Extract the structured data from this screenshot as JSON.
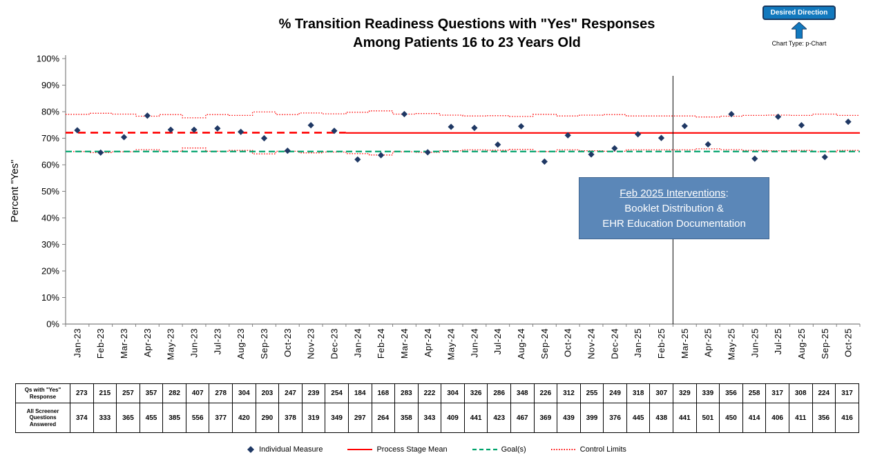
{
  "header": {
    "title_line1": "% Transition Readiness Questions with \"Yes\" Responses",
    "title_line2": "Among Patients 16 to 23 Years Old",
    "desired_direction_label": "Desired Direction",
    "desired_direction_color": "#1279BE",
    "chart_type_label": "Chart Type: p-Chart"
  },
  "y_axis": {
    "label": "Percent \"Yes\"",
    "ticks": [
      "0%",
      "10%",
      "20%",
      "30%",
      "40%",
      "50%",
      "60%",
      "70%",
      "80%",
      "90%",
      "100%"
    ]
  },
  "chart_data": {
    "type": "line",
    "subtype": "p-control-chart",
    "title": "% Transition Readiness Questions with \"Yes\" Responses Among Patients 16 to 23 Years Old",
    "xlabel": "",
    "ylabel": "Percent \"Yes\"",
    "ylim": [
      0,
      100
    ],
    "grid": false,
    "legend_position": "bottom",
    "categories": [
      "Jan-23",
      "Feb-23",
      "Mar-23",
      "Apr-23",
      "May-23",
      "Jun-23",
      "Jul-23",
      "Aug-23",
      "Sep-23",
      "Oct-23",
      "Nov-23",
      "Dec-23",
      "Jan-24",
      "Feb-24",
      "Mar-24",
      "Apr-24",
      "May-24",
      "Jun-24",
      "Jul-24",
      "Aug-24",
      "Sep-24",
      "Oct-24",
      "Nov-24",
      "Dec-24",
      "Jan-25",
      "Feb-25",
      "Mar-25",
      "Apr-25",
      "May-25",
      "Jun-25",
      "Jul-25",
      "Aug-25",
      "Sep-25",
      "Oct-25"
    ],
    "series": [
      {
        "name": "Individual Measure",
        "type": "scatter",
        "marker": "diamond",
        "color": "#1F3864",
        "values": [
          73.0,
          64.6,
          70.4,
          78.5,
          73.2,
          73.2,
          73.7,
          72.4,
          70.0,
          65.3,
          74.9,
          72.8,
          62.0,
          63.6,
          79.1,
          64.7,
          74.3,
          73.9,
          67.6,
          74.5,
          61.2,
          71.1,
          63.9,
          66.2,
          71.5,
          70.1,
          74.6,
          67.7,
          79.1,
          62.3,
          78.1,
          74.9,
          62.9,
          76.2
        ]
      }
    ],
    "numerators": [
      273,
      215,
      257,
      357,
      282,
      407,
      278,
      304,
      203,
      247,
      239,
      254,
      184,
      168,
      283,
      222,
      304,
      326,
      286,
      348,
      226,
      312,
      255,
      249,
      318,
      307,
      329,
      339,
      356,
      258,
      317,
      308,
      224,
      317
    ],
    "denominators": [
      374,
      333,
      365,
      455,
      385,
      556,
      377,
      420,
      290,
      378,
      319,
      349,
      297,
      264,
      358,
      343,
      409,
      441,
      423,
      467,
      369,
      439,
      399,
      376,
      445,
      438,
      441,
      501,
      450,
      414,
      406,
      411,
      356,
      416
    ],
    "mean_color": "#FF0000",
    "process_stages": [
      {
        "name": "Process Stage Mean (baseline)",
        "start_index": 0,
        "end_index": 11,
        "mean": 72.1,
        "line_style": "dashed"
      },
      {
        "name": "Process Stage Mean (current)",
        "start_index": 12,
        "end_index": 33,
        "mean": 72.0,
        "line_style": "solid"
      }
    ],
    "goal": {
      "label": "Goal(s)",
      "value": 65,
      "color": "#00A36C"
    },
    "control_limits": {
      "label": "Control Limits",
      "color": "#FF0000",
      "upper": [
        79.0,
        79.4,
        79.1,
        78.3,
        78.9,
        77.7,
        78.9,
        78.6,
        79.9,
        78.9,
        79.5,
        79.2,
        79.8,
        80.3,
        79.1,
        79.3,
        78.7,
        78.4,
        78.5,
        78.2,
        79.0,
        78.4,
        78.7,
        78.9,
        78.4,
        78.4,
        78.4,
        78.0,
        78.3,
        78.6,
        78.7,
        78.6,
        79.1,
        78.6
      ],
      "lower": [
        65.0,
        64.6,
        64.9,
        65.7,
        65.1,
        66.3,
        65.1,
        65.4,
        64.1,
        65.1,
        64.5,
        64.8,
        64.2,
        63.7,
        64.9,
        64.7,
        65.3,
        65.6,
        65.5,
        65.8,
        65.0,
        65.6,
        65.3,
        65.1,
        65.6,
        65.6,
        65.6,
        66.0,
        65.7,
        65.4,
        65.3,
        65.4,
        64.9,
        65.4
      ]
    }
  },
  "intervention_line": {
    "after_category": "Feb-25",
    "boundary_index": 26
  },
  "annotation": {
    "line1": "Feb 2025 Interventions",
    "line1_suffix": ":",
    "line2": "Booklet Distribution &",
    "line3": "EHR Education Documentation",
    "bg_color": "#5B87B8"
  },
  "table": {
    "rows": [
      {
        "label": "Qs with \"Yes\" Response",
        "values": [
          273,
          215,
          257,
          357,
          282,
          407,
          278,
          304,
          203,
          247,
          239,
          254,
          184,
          168,
          283,
          222,
          304,
          326,
          286,
          348,
          226,
          312,
          255,
          249,
          318,
          307,
          329,
          339,
          356,
          258,
          317,
          308,
          224,
          317
        ]
      },
      {
        "label": "All Screener Questions Answered",
        "values": [
          374,
          333,
          365,
          455,
          385,
          556,
          377,
          420,
          290,
          378,
          319,
          349,
          297,
          264,
          358,
          343,
          409,
          441,
          423,
          467,
          369,
          439,
          399,
          376,
          445,
          438,
          441,
          501,
          450,
          414,
          406,
          411,
          356,
          416
        ]
      }
    ]
  },
  "legend": {
    "items": [
      {
        "label": "Individual Measure",
        "marker": "diamond",
        "color": "#1F3864"
      },
      {
        "label": "Process Stage Mean",
        "marker": "solid-line",
        "color": "#FF0000"
      },
      {
        "label": "Goal(s)",
        "marker": "dashed-line",
        "color": "#00A36C"
      },
      {
        "label": "Control Limits",
        "marker": "dotted-line",
        "color": "#FF0000"
      }
    ]
  }
}
